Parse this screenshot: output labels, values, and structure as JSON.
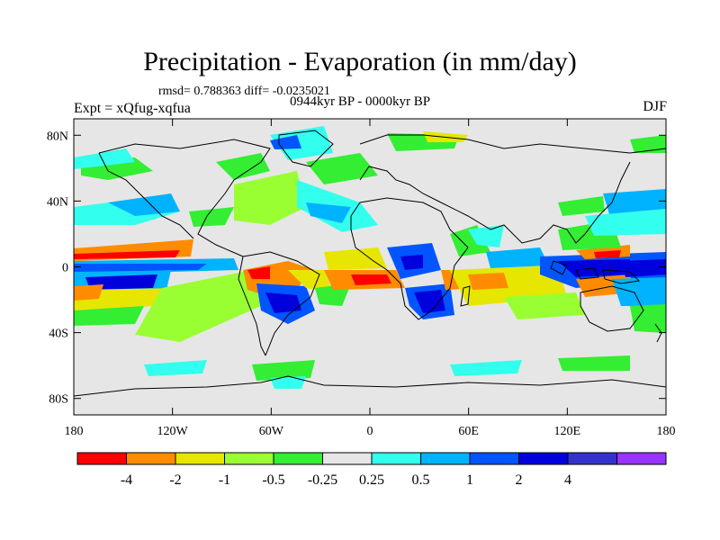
{
  "title": "Precipitation - Evaporation (in mm/day)",
  "stats": "rmsd= 0.788363  diff= -0.0235021",
  "period": "0944kyr BP - 0000kyr BP",
  "experiment": "Expt = xQfug-xqfua",
  "season": "DJF",
  "map": {
    "lat_ticks": [
      {
        "label": "80N",
        "value": 80
      },
      {
        "label": "40N",
        "value": 40
      },
      {
        "label": "0",
        "value": 0
      },
      {
        "label": "40S",
        "value": -40
      },
      {
        "label": "80S",
        "value": -80
      }
    ],
    "lon_ticks": [
      {
        "label": "180",
        "value": -180
      },
      {
        "label": "120W",
        "value": -120
      },
      {
        "label": "60W",
        "value": -60
      },
      {
        "label": "0",
        "value": 0
      },
      {
        "label": "60E",
        "value": 60
      },
      {
        "label": "120E",
        "value": 120
      },
      {
        "label": "180",
        "value": 180
      }
    ]
  },
  "colorbar": {
    "colors": [
      "#ff0000",
      "#ff8c00",
      "#e6e600",
      "#99ff33",
      "#33ee33",
      "#e6e6e6",
      "#33ffee",
      "#00b3ff",
      "#0055ff",
      "#0000dd",
      "#3333cc",
      "#9933ff"
    ],
    "labels": [
      "-4",
      "-2",
      "-1",
      "-0.5",
      "-0.25",
      "0.25",
      "0.5",
      "1",
      "2",
      "4"
    ]
  }
}
